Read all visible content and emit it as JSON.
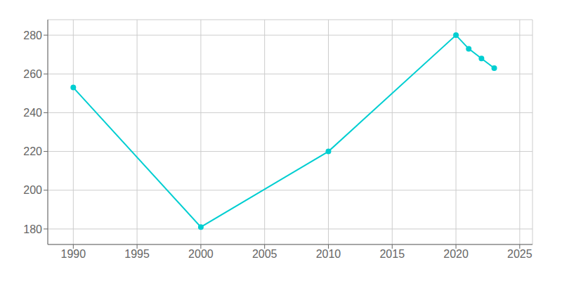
{
  "chart_data": {
    "type": "line",
    "x": [
      1990,
      2000,
      2010,
      2020,
      2021,
      2022,
      2023
    ],
    "values": [
      253,
      181,
      220,
      280,
      273,
      268,
      263
    ],
    "color": "#00CED1",
    "marker": "o",
    "grid": true,
    "xlim": [
      1988,
      2026
    ],
    "ylim": [
      172,
      288
    ],
    "xticks": [
      1990,
      1995,
      2000,
      2005,
      2010,
      2015,
      2020,
      2025
    ],
    "yticks": [
      180,
      200,
      220,
      240,
      260,
      280
    ]
  }
}
